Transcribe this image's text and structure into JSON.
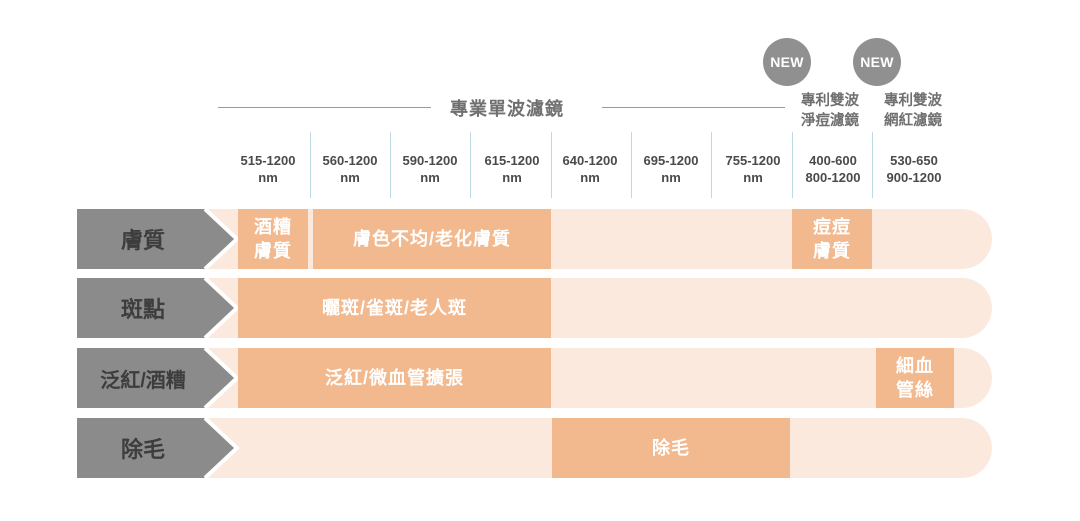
{
  "badges": [
    "NEW",
    "NEW"
  ],
  "header": {
    "single_filter_title": "專業單波濾鏡",
    "dual_filter_1": [
      "專利雙波",
      "淨痘濾鏡"
    ],
    "dual_filter_2": [
      "專利雙波",
      "網紅濾鏡"
    ]
  },
  "ranges": [
    [
      "515-1200",
      "nm"
    ],
    [
      "560-1200",
      "nm"
    ],
    [
      "590-1200",
      "nm"
    ],
    [
      "615-1200",
      "nm"
    ],
    [
      "640-1200",
      "nm"
    ],
    [
      "695-1200",
      "nm"
    ],
    [
      "755-1200",
      "nm"
    ],
    [
      "400-600",
      "800-1200"
    ],
    [
      "530-650",
      "900-1200"
    ]
  ],
  "rows": [
    {
      "label": "膚質",
      "segments": [
        {
          "lines": [
            "酒糟",
            "膚質"
          ]
        },
        {
          "lines": [
            "膚色不均/老化膚質"
          ]
        },
        {
          "lines": [
            "痘痘",
            "膚質"
          ]
        }
      ]
    },
    {
      "label": "斑點",
      "segments": [
        {
          "lines": [
            "曬斑/雀斑/老人斑"
          ]
        }
      ]
    },
    {
      "label": "泛紅/酒糟",
      "segments": [
        {
          "lines": [
            "泛紅/微血管擴張"
          ]
        },
        {
          "lines": [
            "細血",
            "管絲"
          ]
        }
      ]
    },
    {
      "label": "除毛",
      "segments": [
        {
          "lines": [
            "除毛"
          ]
        }
      ]
    }
  ],
  "colors": {
    "label_bg": "#8b8b8b",
    "segment": "#f2b88e",
    "track": "#fbe9dd",
    "badge": "#909090",
    "divider": "#bcd9e6"
  }
}
